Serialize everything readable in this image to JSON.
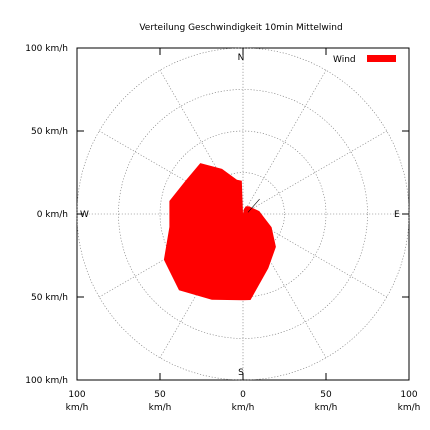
{
  "chart_data": {
    "type": "radar",
    "title": "Verteilung Geschwindigkeit  10min Mittelwind",
    "x_ticks": [
      {
        "value": -100,
        "label": "100",
        "unit": "km/h"
      },
      {
        "value": -50,
        "label": "50",
        "unit": "km/h"
      },
      {
        "value": 0,
        "label": "0",
        "unit": "km/h"
      },
      {
        "value": 50,
        "label": "50",
        "unit": "km/h"
      },
      {
        "value": 100,
        "label": "100",
        "unit": "km/h"
      }
    ],
    "y_ticks": [
      {
        "value": 100,
        "label": "100 km/h"
      },
      {
        "value": 50,
        "label": "50 km/h"
      },
      {
        "value": 0,
        "label": "0 km/h"
      },
      {
        "value": -50,
        "label": "50 km/h"
      },
      {
        "value": -100,
        "label": "100 km/h"
      }
    ],
    "xlim": [
      -100,
      100
    ],
    "ylim": [
      -100,
      100
    ],
    "rings": [
      25,
      50,
      75,
      100
    ],
    "spoke_step_deg": 30,
    "compass": {
      "north": "N",
      "east": "E",
      "south": "S",
      "west": "W"
    },
    "series": [
      {
        "name": "Wind",
        "color": "#ff0000",
        "points": [
          {
            "direction_deg": 0,
            "speed": 0
          },
          {
            "direction_deg": 10,
            "speed": 3
          },
          {
            "direction_deg": 20,
            "speed": 5
          },
          {
            "direction_deg": 40,
            "speed": 6
          },
          {
            "direction_deg": 60,
            "speed": 7
          },
          {
            "direction_deg": 80,
            "speed": 10
          },
          {
            "direction_deg": 100,
            "speed": 13
          },
          {
            "direction_deg": 115,
            "speed": 19
          },
          {
            "direction_deg": 135,
            "speed": 28
          },
          {
            "direction_deg": 155,
            "speed": 36
          },
          {
            "direction_deg": 175,
            "speed": 52
          },
          {
            "direction_deg": 180,
            "speed": 52
          },
          {
            "direction_deg": 200,
            "speed": 55
          },
          {
            "direction_deg": 220,
            "speed": 60
          },
          {
            "direction_deg": 240,
            "speed": 55
          },
          {
            "direction_deg": 260,
            "speed": 45
          },
          {
            "direction_deg": 280,
            "speed": 45
          },
          {
            "direction_deg": 300,
            "speed": 40
          },
          {
            "direction_deg": 320,
            "speed": 40
          },
          {
            "direction_deg": 335,
            "speed": 30
          },
          {
            "direction_deg": 350,
            "speed": 21
          },
          {
            "direction_deg": 358,
            "speed": 20
          }
        ],
        "center_offset_line": [
          [
            3,
            1
          ],
          [
            10,
            9
          ]
        ]
      }
    ],
    "legend": {
      "position": "top-right",
      "label": "Wind"
    },
    "grid": true
  }
}
